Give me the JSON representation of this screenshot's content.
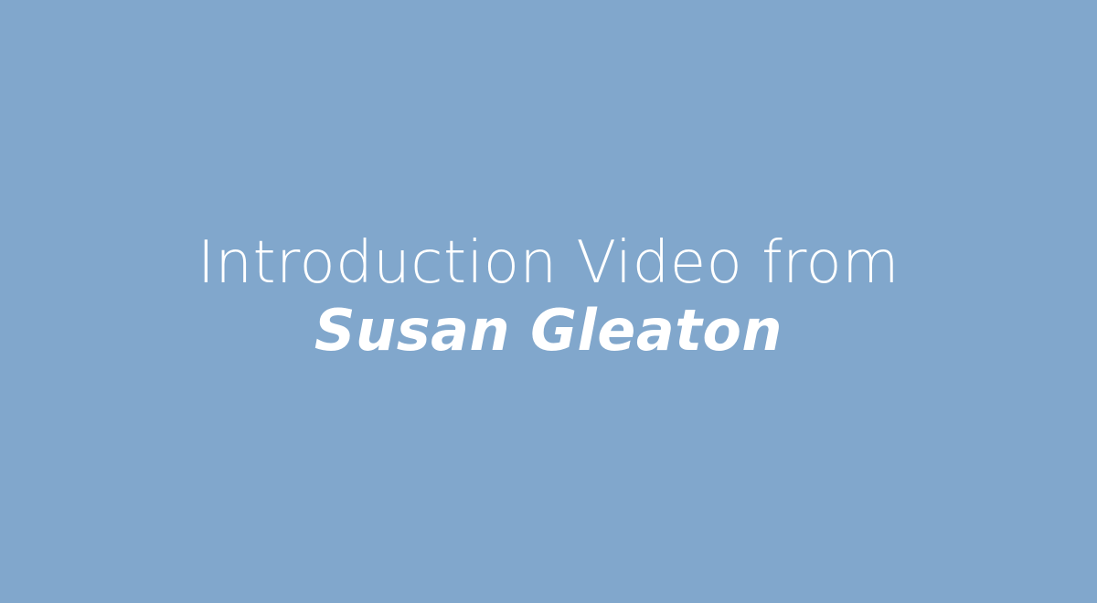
{
  "colors": {
    "background": "#81a7cc",
    "text": "#ffffff"
  },
  "title": {
    "line1": "Introduction Video from",
    "line2": "Susan Gleaton"
  }
}
